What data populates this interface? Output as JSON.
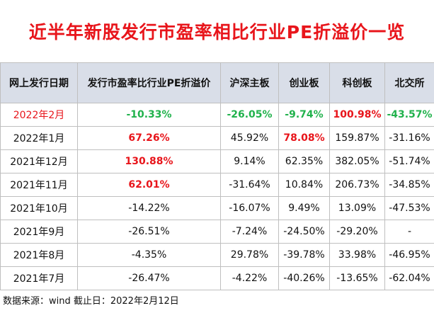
{
  "title": "近半年新股发行市盈率相比行业PE折溢价一览",
  "headers": [
    "网上发行日期",
    "发行市盈率比行业PE折溢价",
    "沪深主板",
    "创业板",
    "科创板",
    "北交所"
  ],
  "rows": [
    {
      "date": "2022年2月",
      "date_style": "red",
      "cells": [
        {
          "v": "-10.33%",
          "s": "green"
        },
        {
          "v": "-26.05%",
          "s": "green"
        },
        {
          "v": "-9.74%",
          "s": "green"
        },
        {
          "v": "100.98%",
          "s": "red"
        },
        {
          "v": "-43.57%",
          "s": "green"
        }
      ]
    },
    {
      "date": "2022年1月",
      "date_style": "",
      "cells": [
        {
          "v": "67.26%",
          "s": "red"
        },
        {
          "v": "45.92%",
          "s": ""
        },
        {
          "v": "78.08%",
          "s": "red"
        },
        {
          "v": "159.87%",
          "s": ""
        },
        {
          "v": "-31.16%",
          "s": ""
        }
      ]
    },
    {
      "date": "2021年12月",
      "date_style": "",
      "cells": [
        {
          "v": "130.88%",
          "s": "red"
        },
        {
          "v": "9.14%",
          "s": ""
        },
        {
          "v": "62.35%",
          "s": ""
        },
        {
          "v": "382.05%",
          "s": ""
        },
        {
          "v": "-51.74%",
          "s": ""
        }
      ]
    },
    {
      "date": "2021年11月",
      "date_style": "",
      "cells": [
        {
          "v": "62.01%",
          "s": "red"
        },
        {
          "v": "-31.64%",
          "s": ""
        },
        {
          "v": "10.84%",
          "s": ""
        },
        {
          "v": "206.73%",
          "s": ""
        },
        {
          "v": "-34.85%",
          "s": ""
        }
      ]
    },
    {
      "date": "2021年10月",
      "date_style": "",
      "cells": [
        {
          "v": "-14.22%",
          "s": ""
        },
        {
          "v": "-16.07%",
          "s": ""
        },
        {
          "v": "9.49%",
          "s": ""
        },
        {
          "v": "13.09%",
          "s": ""
        },
        {
          "v": "-47.53%",
          "s": ""
        }
      ]
    },
    {
      "date": "2021年9月",
      "date_style": "",
      "cells": [
        {
          "v": "-26.51%",
          "s": ""
        },
        {
          "v": "-7.24%",
          "s": ""
        },
        {
          "v": "-24.50%",
          "s": ""
        },
        {
          "v": "-29.20%",
          "s": ""
        },
        {
          "v": "-",
          "s": ""
        }
      ]
    },
    {
      "date": "2021年8月",
      "date_style": "",
      "cells": [
        {
          "v": "-4.35%",
          "s": ""
        },
        {
          "v": "29.78%",
          "s": ""
        },
        {
          "v": "-39.78%",
          "s": ""
        },
        {
          "v": "33.98%",
          "s": ""
        },
        {
          "v": "-46.95%",
          "s": ""
        }
      ]
    },
    {
      "date": "2021年7月",
      "date_style": "",
      "cells": [
        {
          "v": "-26.47%",
          "s": ""
        },
        {
          "v": "-4.22%",
          "s": ""
        },
        {
          "v": "-40.26%",
          "s": ""
        },
        {
          "v": "-13.65%",
          "s": ""
        },
        {
          "v": "-62.04%",
          "s": ""
        }
      ]
    }
  ],
  "footer": "数据来源：wind  截止日：2022年2月12日",
  "colors": {
    "red": "#e8151b",
    "green": "#21b24c",
    "header_bg": "#d9dee8"
  }
}
